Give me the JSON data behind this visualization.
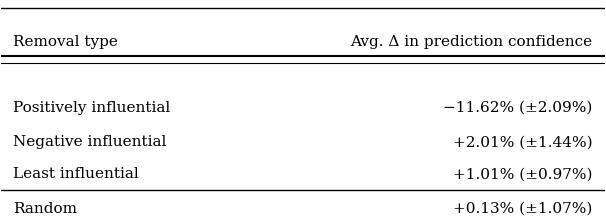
{
  "col_headers": [
    "Removal type",
    "Avg. Δ in prediction confidence"
  ],
  "rows": [
    [
      "Positively influential",
      "−11.62% (±2.09%)"
    ],
    [
      "Negative influential",
      "+2.01% (±1.44%)"
    ],
    [
      "Least influential",
      "+1.01% (±0.97%)"
    ],
    [
      "Random",
      "+0.13% (±1.07%)"
    ]
  ],
  "bg_color": "#ffffff",
  "text_color": "#000000",
  "font_size": 11,
  "header_font_size": 11,
  "fig_width": 6.06,
  "fig_height": 2.16,
  "dpi": 100
}
